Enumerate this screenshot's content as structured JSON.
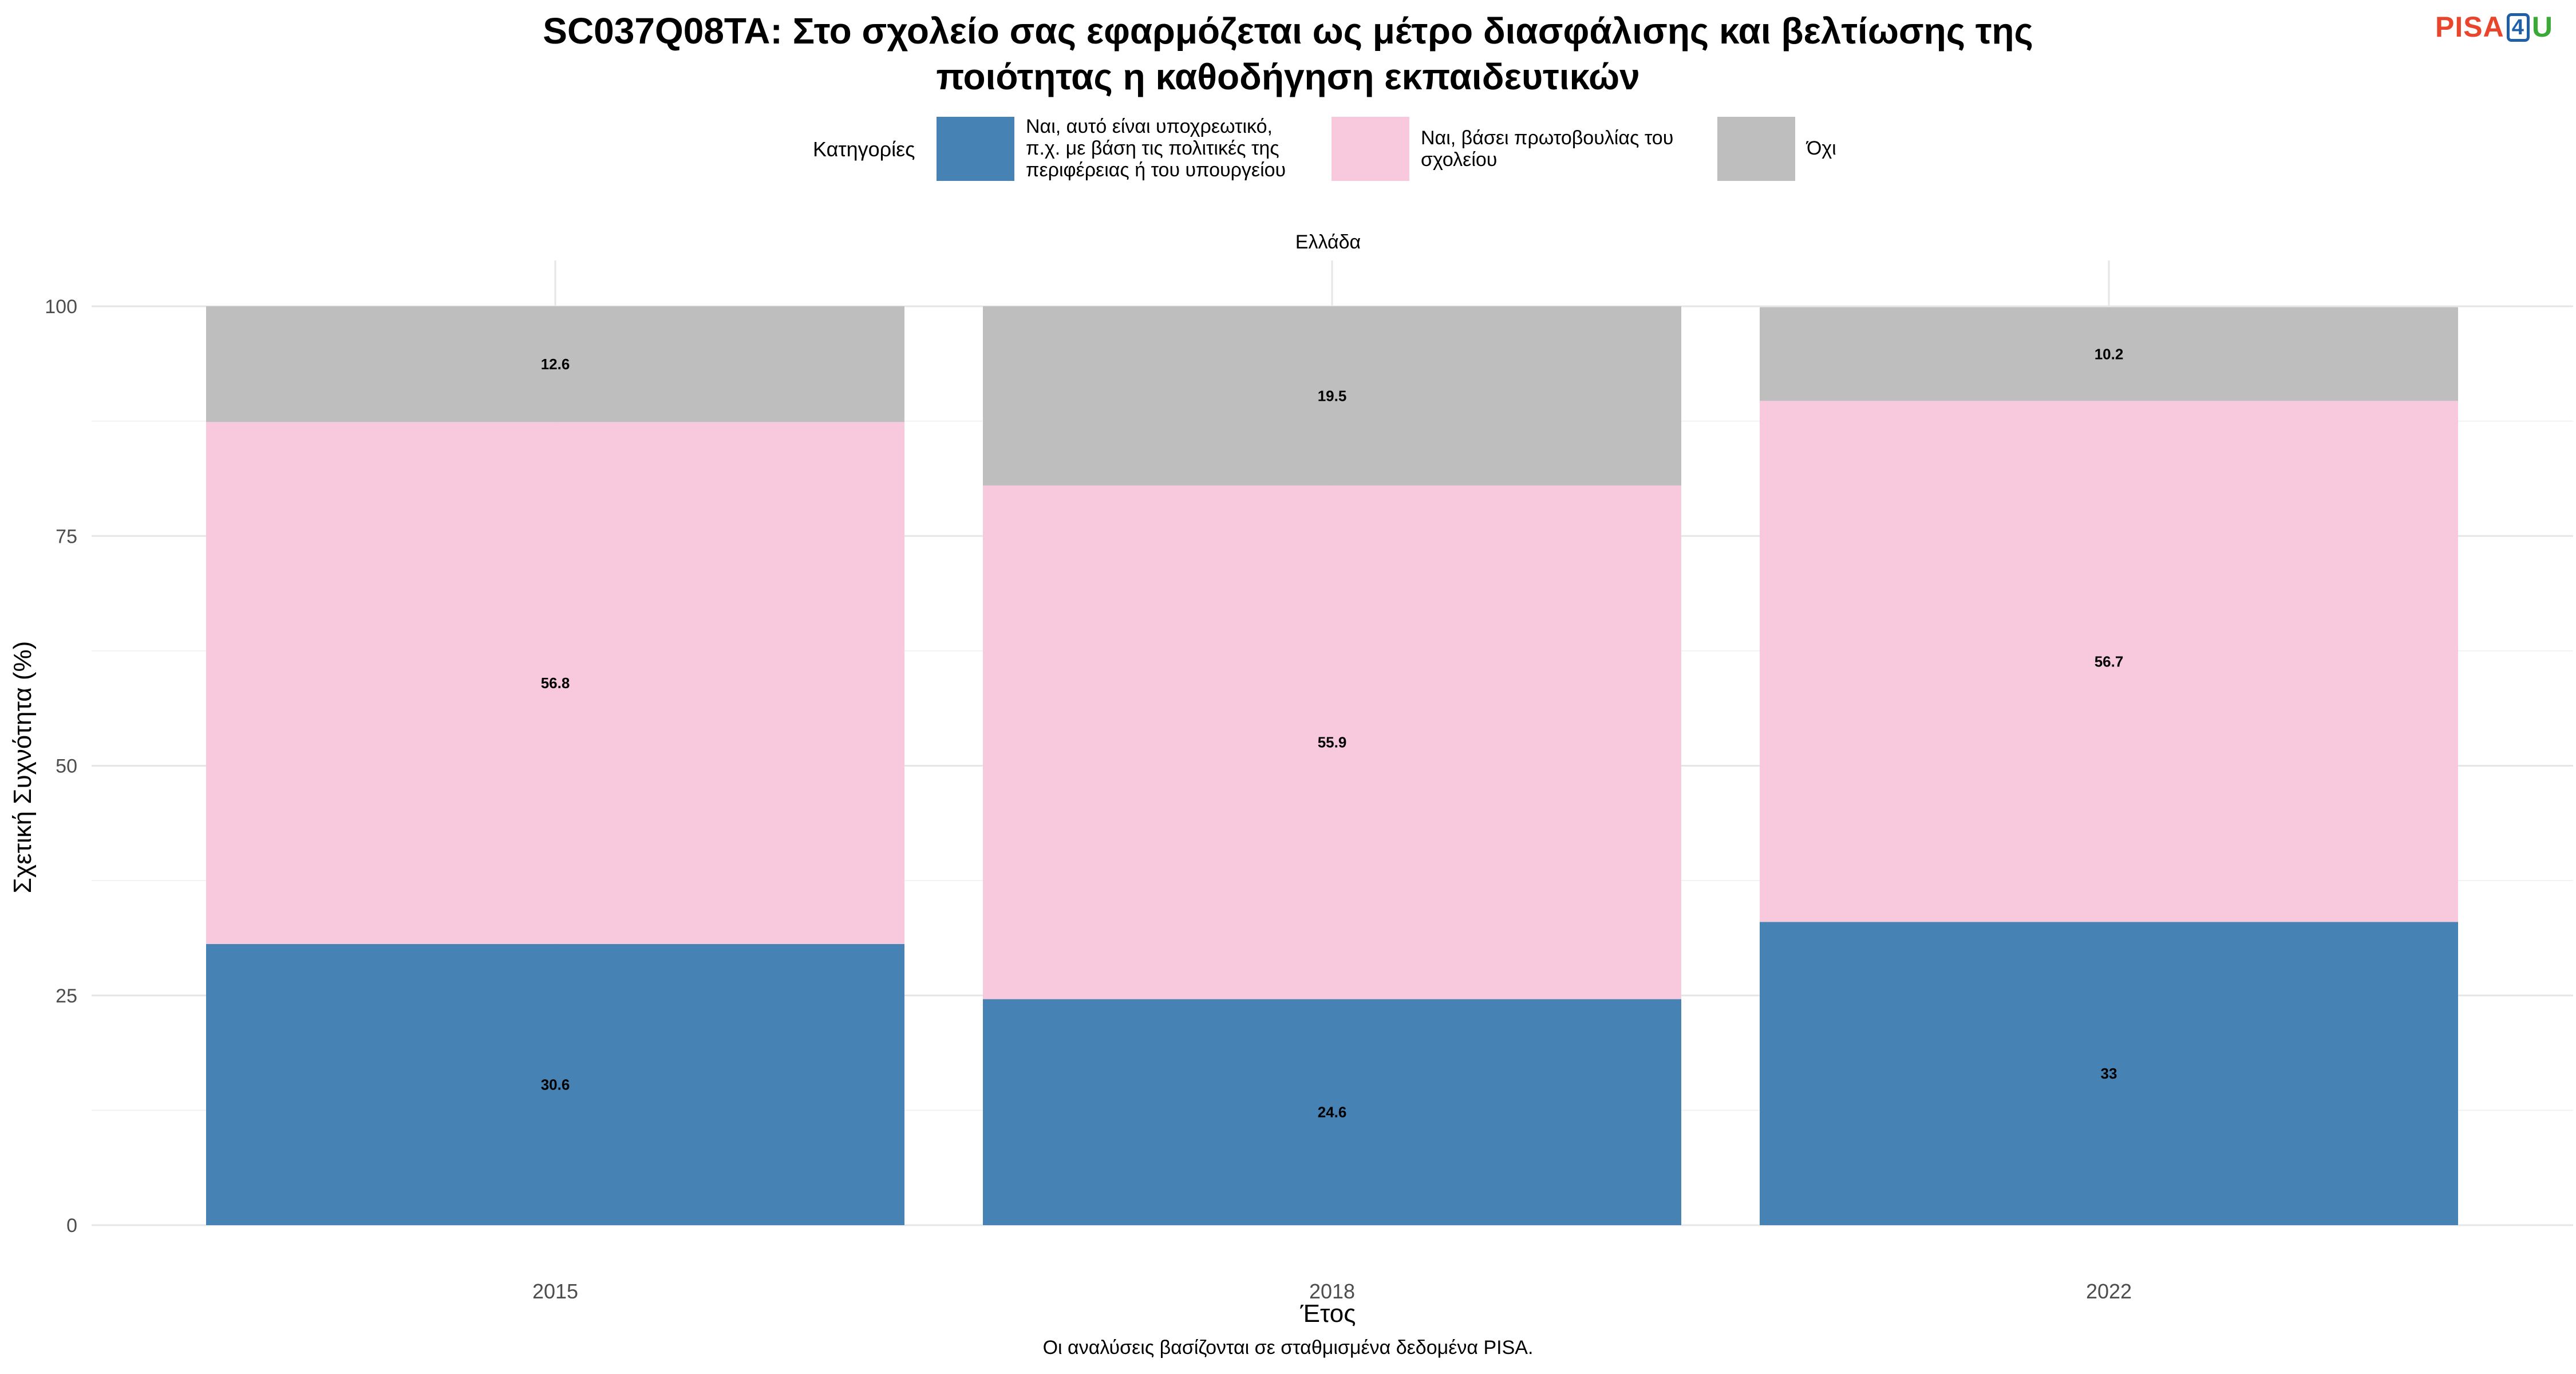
{
  "header": {
    "title_line1": "SC037Q08TA: Στο σχολείο σας εφαρμόζεται ως μέτρο διασφάλισης και βελτίωσης της",
    "title_line2": "ποιότητας η καθοδήγηση εκπαιδευτικών",
    "logo": {
      "part1": "PISA",
      "part2": "4",
      "part3": "U"
    }
  },
  "legend": {
    "title": "Κατηγορίες",
    "items": [
      {
        "label_lines": [
          "Ναι, αυτό είναι υποχρεωτικό,",
          "π.χ. με βάση τις πολιτικές της",
          "περιφέρειας ή του υπουργείου"
        ],
        "color": "#4682b4"
      },
      {
        "label_lines": [
          "Ναι, βάσει πρωτοβουλίας του",
          "σχολείου"
        ],
        "color": "#f8c8dc"
      },
      {
        "label_lines": [
          "Όχι"
        ],
        "color": "#bebebe"
      }
    ]
  },
  "footer": {
    "source": "Οι αναλύσεις βασίζονται σε σταθμισμένα δεδομένα PISA."
  },
  "chart_data": {
    "type": "bar",
    "stacked": true,
    "facet": "Ελλάδα",
    "categories": [
      "2015",
      "2018",
      "2022"
    ],
    "series": [
      {
        "name": "Ναι, αυτό είναι υποχρεωτικό, π.χ. με βάση τις πολιτικές της περιφέρειας ή του υπουργείου",
        "values": [
          30.6,
          24.6,
          33
        ],
        "color": "#4682b4"
      },
      {
        "name": "Ναι, βάσει πρωτοβουλίας του σχολείου",
        "values": [
          56.8,
          55.9,
          56.7
        ],
        "color": "#f8c8dc"
      },
      {
        "name": "Όχι",
        "values": [
          12.6,
          19.5,
          10.2
        ],
        "color": "#bebebe"
      }
    ],
    "xlabel": "Έτος",
    "ylabel": "Σχετική Συχνότητα (%)",
    "ylim": [
      0,
      100
    ],
    "yticks": [
      0,
      25,
      50,
      75,
      100
    ],
    "grid": true,
    "legend_position": "top"
  }
}
